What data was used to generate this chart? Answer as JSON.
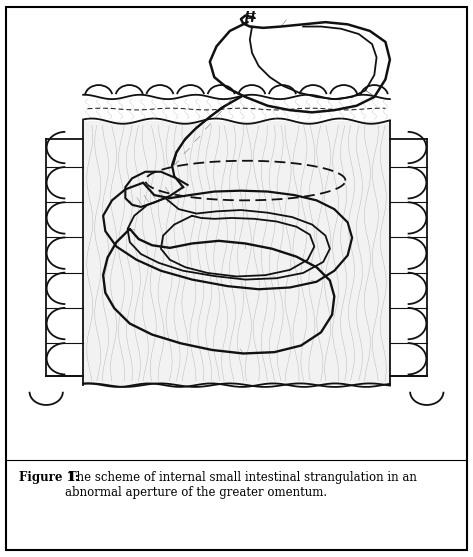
{
  "figure_width": 4.73,
  "figure_height": 5.57,
  "dpi": 100,
  "background_color": "#ffffff",
  "border_color": "#000000",
  "caption_bold": "Figure 1:",
  "caption_normal": " The scheme of internal small intestinal strangulation in an\nabnormal aperture of the greater omentum.",
  "caption_fontsize": 8.5,
  "line_color": "#111111",
  "texture_color": "#888888",
  "omentum_fill": "#f5f5f5",
  "stomach_fill": "#ffffff"
}
